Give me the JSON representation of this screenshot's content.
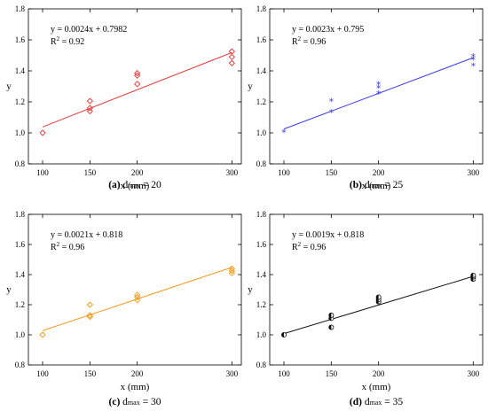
{
  "chart_data": [
    {
      "type": "scatter",
      "panel_letter": "(a)",
      "caption_prefix": "d",
      "caption_sub": "max",
      "caption_value": "= 20",
      "xlabel": "x (mm)",
      "ylabel": "y",
      "xlim": [
        85,
        310
      ],
      "ylim": [
        0.8,
        1.8
      ],
      "xticks": [
        100,
        150,
        200,
        300
      ],
      "yticks": [
        0.8,
        1.0,
        1.2,
        1.4,
        1.6,
        1.8
      ],
      "color": "#e83a3a",
      "marker": "diamond",
      "equation": "y = 0.0024x + 0.7982",
      "r2": "= 0.92",
      "fit": {
        "slope": 0.0024,
        "intercept": 0.7982,
        "x_from": 100,
        "x_to": 300
      },
      "points": [
        [
          100,
          1.0
        ],
        [
          150,
          1.14
        ],
        [
          150,
          1.16
        ],
        [
          150,
          1.205
        ],
        [
          200,
          1.315
        ],
        [
          200,
          1.37
        ],
        [
          200,
          1.385
        ],
        [
          300,
          1.45
        ],
        [
          300,
          1.49
        ],
        [
          300,
          1.525
        ]
      ]
    },
    {
      "type": "scatter",
      "panel_letter": "(b)",
      "caption_prefix": "d",
      "caption_sub": "max",
      "caption_value": "= 25",
      "xlabel": "x (mm)",
      "ylabel": "y",
      "xlim": [
        85,
        310
      ],
      "ylim": [
        0.8,
        1.8
      ],
      "xticks": [
        100,
        150,
        200,
        300
      ],
      "yticks": [
        0.8,
        1.0,
        1.2,
        1.4,
        1.6,
        1.8
      ],
      "color": "#3a3ae8",
      "marker": "star",
      "equation": "y = 0.0023x + 0.795",
      "r2": "= 0.96",
      "fit": {
        "slope": 0.0023,
        "intercept": 0.795,
        "x_from": 100,
        "x_to": 300
      },
      "points": [
        [
          100,
          1.0
        ],
        [
          150,
          1.13
        ],
        [
          150,
          1.2
        ],
        [
          200,
          1.25
        ],
        [
          200,
          1.285
        ],
        [
          200,
          1.31
        ],
        [
          300,
          1.43
        ],
        [
          300,
          1.47
        ],
        [
          300,
          1.49
        ]
      ]
    },
    {
      "type": "scatter",
      "panel_letter": "(c)",
      "caption_prefix": "d",
      "caption_sub": "max",
      "caption_value": "= 30",
      "xlabel": "x (mm)",
      "ylabel": "y",
      "xlim": [
        85,
        310
      ],
      "ylim": [
        0.8,
        1.8
      ],
      "xticks": [
        100,
        150,
        200,
        300
      ],
      "yticks": [
        0.8,
        1.0,
        1.2,
        1.4,
        1.6,
        1.8
      ],
      "color": "#f39a1e",
      "marker": "diamond",
      "equation": "y = 0.0021x + 0.818",
      "r2": "= 0.96",
      "fit": {
        "slope": 0.0021,
        "intercept": 0.818,
        "x_from": 100,
        "x_to": 300
      },
      "points": [
        [
          100,
          1.0
        ],
        [
          150,
          1.12
        ],
        [
          150,
          1.13
        ],
        [
          150,
          1.2
        ],
        [
          200,
          1.23
        ],
        [
          200,
          1.25
        ],
        [
          200,
          1.265
        ],
        [
          300,
          1.41
        ],
        [
          300,
          1.425
        ],
        [
          300,
          1.44
        ]
      ]
    },
    {
      "type": "scatter",
      "panel_letter": "(d)",
      "caption_prefix": "d",
      "caption_sub": "max",
      "caption_value": "= 35",
      "xlabel": "x (mm)",
      "ylabel": "y",
      "xlim": [
        85,
        310
      ],
      "ylim": [
        0.8,
        1.8
      ],
      "xticks": [
        100,
        150,
        200,
        300
      ],
      "yticks": [
        0.8,
        1.0,
        1.2,
        1.4,
        1.6,
        1.8
      ],
      "color": "#111111",
      "marker": "half-circle",
      "equation": "y = 0.0019x + 0.818",
      "r2": "= 0.96",
      "fit": {
        "slope": 0.0019,
        "intercept": 0.818,
        "x_from": 100,
        "x_to": 300
      },
      "points": [
        [
          100,
          1.0
        ],
        [
          150,
          1.05
        ],
        [
          150,
          1.11
        ],
        [
          150,
          1.13
        ],
        [
          200,
          1.22
        ],
        [
          200,
          1.235
        ],
        [
          200,
          1.25
        ],
        [
          300,
          1.37
        ],
        [
          300,
          1.385
        ],
        [
          300,
          1.395
        ]
      ]
    }
  ]
}
